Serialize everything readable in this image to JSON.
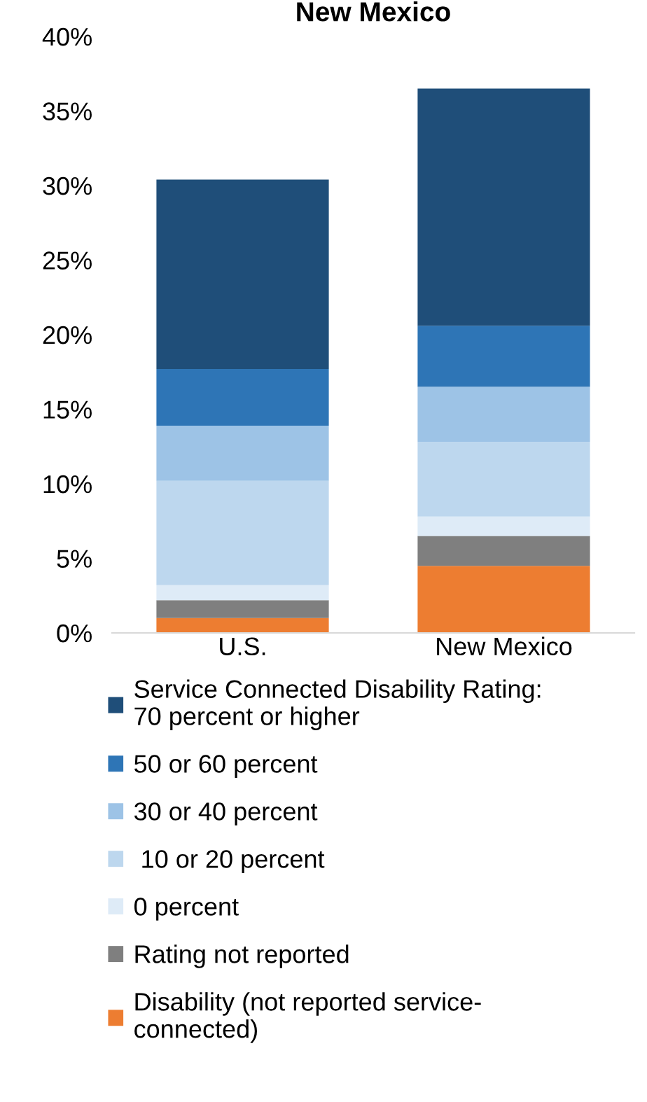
{
  "chart_data": {
    "type": "bar",
    "title": "New Mexico",
    "stacked": true,
    "categories": [
      "U.S.",
      "New Mexico"
    ],
    "series": [
      {
        "name": "Disability (not reported service-\nconnected)",
        "color": "#ed7d31",
        "values": [
          1.0,
          4.5
        ]
      },
      {
        "name": "Rating not reported",
        "color": "#7f7f7f",
        "values": [
          1.2,
          2.0
        ]
      },
      {
        "name": "0 percent",
        "color": "#deebf7",
        "values": [
          1.0,
          1.3
        ]
      },
      {
        "name": " 10 or 20 percent",
        "color": "#bdd7ee",
        "values": [
          7.0,
          5.0
        ]
      },
      {
        "name": "30 or 40 percent",
        "color": "#9dc3e6",
        "values": [
          3.7,
          3.7
        ]
      },
      {
        "name": "50 or 60 percent",
        "color": "#2e75b6",
        "values": [
          3.8,
          4.1
        ]
      },
      {
        "name": "Service Connected Disability Rating:\n70 percent or higher",
        "color": "#1f4e79",
        "values": [
          12.7,
          15.9
        ]
      }
    ],
    "ylim": [
      0,
      40
    ],
    "yticks": [
      {
        "value": 0,
        "label": "0%"
      },
      {
        "value": 5,
        "label": "5%"
      },
      {
        "value": 10,
        "label": "10%"
      },
      {
        "value": 15,
        "label": "15%"
      },
      {
        "value": 20,
        "label": "20%"
      },
      {
        "value": 25,
        "label": "25%"
      },
      {
        "value": 30,
        "label": "30%"
      },
      {
        "value": 35,
        "label": "35%"
      },
      {
        "value": 40,
        "label": "40%"
      }
    ],
    "grid": false,
    "legend": "bottom"
  }
}
